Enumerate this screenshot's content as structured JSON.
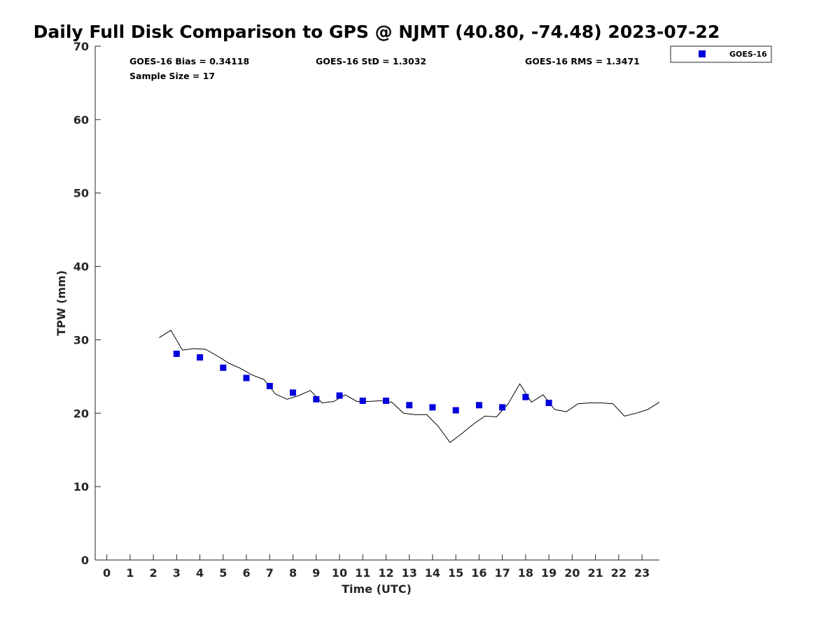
{
  "chart_data": {
    "type": "line",
    "title": "Daily Full Disk Comparison to GPS @ NJMT (40.80, -74.48) 2023-07-22",
    "xlabel": "Time (UTC)",
    "ylabel": "TPW (mm)",
    "xlim": [
      -0.5,
      23.75
    ],
    "ylim": [
      0,
      70
    ],
    "xticks": [
      "0",
      "1",
      "2",
      "3",
      "4",
      "5",
      "6",
      "7",
      "8",
      "9",
      "10",
      "11",
      "12",
      "13",
      "14",
      "15",
      "16",
      "17",
      "18",
      "19",
      "20",
      "21",
      "22",
      "23"
    ],
    "yticks": [
      "0",
      "10",
      "20",
      "30",
      "40",
      "50",
      "60",
      "70"
    ],
    "grid": false,
    "legend_position": "top-right, outside plot",
    "stats": {
      "bias": "GOES-16 Bias = 0.34118",
      "std": "GOES-16 StD = 1.3032",
      "rms": "GOES-16 RMS = 1.3471",
      "sample_size": "Sample Size = 17"
    },
    "series": [
      {
        "name": "GOES-16",
        "marker": "square",
        "color": "#0000dd",
        "x": [
          3.0,
          4.0,
          5.0,
          6.0,
          7.0,
          8.0,
          9.0,
          10.0,
          11.0,
          12.0,
          13.0,
          14.0,
          15.0,
          16.0,
          17.0,
          18.0,
          19.0
        ],
        "y": [
          28.1,
          27.6,
          26.2,
          24.8,
          23.7,
          22.8,
          21.9,
          22.4,
          21.7,
          21.7,
          21.1,
          20.8,
          20.4,
          21.1,
          20.8,
          22.2,
          21.4
        ]
      },
      {
        "line_color": "#000000",
        "x": [
          2.25,
          2.75,
          3.25,
          3.75,
          4.25,
          4.75,
          5.25,
          5.75,
          6.25,
          6.75,
          7.25,
          7.75,
          8.25,
          8.75,
          9.25,
          9.75,
          10.25,
          10.75,
          11.25,
          11.75,
          12.25,
          12.75,
          13.25,
          13.75,
          14.25,
          14.75,
          15.25,
          15.75,
          16.25,
          16.75,
          17.25,
          17.75,
          18.25,
          18.75,
          19.25,
          19.75,
          20.25,
          20.75,
          21.25,
          21.75,
          22.25,
          22.75,
          23.25,
          23.75
        ],
        "y": [
          30.3,
          31.3,
          28.6,
          28.8,
          28.7,
          27.8,
          26.8,
          26.1,
          25.2,
          24.6,
          22.6,
          21.9,
          22.4,
          23.1,
          21.4,
          21.6,
          22.5,
          21.6,
          21.6,
          21.7,
          21.5,
          20.0,
          19.8,
          19.8,
          18.2,
          16.0,
          17.2,
          18.5,
          19.6,
          19.5,
          21.3,
          24.0,
          21.5,
          22.5,
          20.5,
          20.2,
          21.3,
          21.4,
          21.4,
          21.3,
          19.6,
          20.0,
          20.5,
          21.5
        ]
      }
    ]
  }
}
